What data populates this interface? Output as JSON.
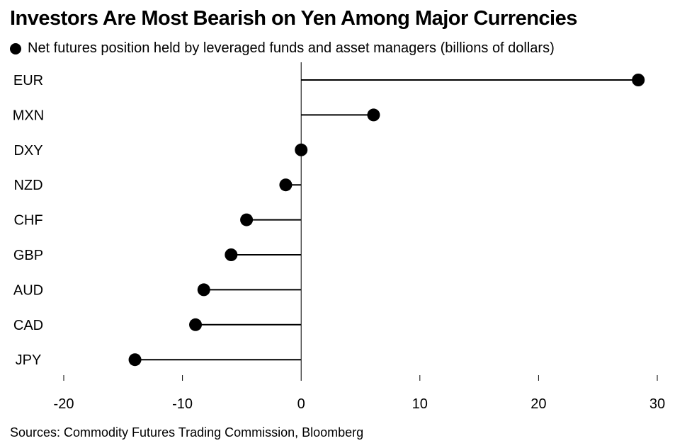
{
  "chart_data": {
    "type": "lollipop",
    "title": "Investors Are Most Bearish on Yen Among Major Currencies",
    "legend": "Net futures position held by leveraged funds and asset managers (billions of dollars)",
    "categories": [
      "EUR",
      "MXN",
      "DXY",
      "NZD",
      "CHF",
      "GBP",
      "AUD",
      "CAD",
      "JPY"
    ],
    "values": [
      28.4,
      6.1,
      0.0,
      -1.3,
      -4.6,
      -5.9,
      -8.2,
      -8.9,
      -14.0
    ],
    "xlim": [
      -20,
      30
    ],
    "xticks": [
      -20,
      -10,
      0,
      10,
      20,
      30
    ],
    "source": "Sources: Commodity Futures Trading Commission, Bloomberg"
  }
}
